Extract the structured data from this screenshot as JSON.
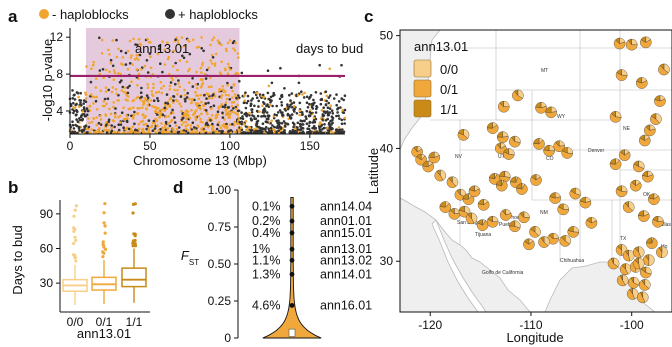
{
  "figure": {
    "panel_letters": [
      "a",
      "b",
      "c",
      "d"
    ],
    "colors": {
      "minus_haploblock": "#F2A52E",
      "plus_haploblock": "#333333",
      "threshold_line": "#9C1F6A",
      "haploblock_shade": "#E4CADC",
      "geno_00": "#F8CF8A",
      "geno_01": "#F0A83C",
      "geno_11": "#C98A18"
    }
  },
  "panel_a": {
    "legend": {
      "minus_label": "- haploblocks",
      "plus_label": "+ haploblocks"
    },
    "haploblock_label": "ann13.01",
    "trait_label": "days to bud",
    "chart_data": {
      "type": "scatter",
      "title": "",
      "xlabel": "Chromosome 13 (Mbp)",
      "ylabel": "-log10 p-value",
      "xlim": [
        0,
        172
      ],
      "ylim": [
        1.5,
        13
      ],
      "xticks": [
        0,
        50,
        100,
        150
      ],
      "yticks": [
        4,
        8,
        12
      ],
      "threshold": 7.8,
      "haploblock_region": [
        10,
        106
      ],
      "grid": false
    }
  },
  "panel_b": {
    "chart_data": {
      "type": "box",
      "title": "",
      "xlabel": "ann13.01",
      "ylabel": "Days to bud",
      "categories": [
        "0/0",
        "0/1",
        "1/1"
      ],
      "ylim": [
        5,
        102
      ],
      "yticks": [
        30,
        60,
        90
      ],
      "series": [
        {
          "q1": 23,
          "median": 28,
          "q3": 33,
          "whisker_low": 11,
          "whisker_high": 46
        },
        {
          "q1": 24,
          "median": 29,
          "q3": 35,
          "whisker_low": 12,
          "whisker_high": 50
        },
        {
          "q1": 27,
          "median": 33,
          "q3": 43,
          "whisker_low": 13,
          "whisker_high": 60
        }
      ]
    }
  },
  "panel_c": {
    "legend_title": "ann13.01",
    "legend_items": [
      "0/0",
      "0/1",
      "1/1"
    ],
    "chart_data": {
      "type": "map",
      "title": "",
      "xlabel": "Longitude",
      "ylabel": "Latitude",
      "xlim": [
        -123,
        -96
      ],
      "ylim": [
        25.5,
        50.5
      ],
      "xticks": [
        -120,
        -110,
        -100
      ],
      "yticks": [
        30,
        40,
        50
      ]
    },
    "map_labels": [
      "MT",
      "WY",
      "NE",
      "NV",
      "UT",
      "CO",
      "NM",
      "OK",
      "TX",
      "Denver",
      "Dallas",
      "Phoenix",
      "San Diego",
      "Tijuana",
      "Pueblo",
      "Chihuahua",
      "Monterrey",
      "Golfo de California",
      "Ho"
    ]
  },
  "panel_d": {
    "chart_data": {
      "type": "violin",
      "title": "",
      "xlabel": "",
      "ylabel": "F",
      "ylabel_sub": "ST",
      "ylim": [
        0,
        1
      ],
      "yticks": [
        0,
        0.25,
        0.5,
        0.75,
        1.0
      ],
      "ytick_labels": [
        "0",
        "0.25",
        "0.50",
        "0.75",
        "1.00"
      ],
      "outliers": [
        {
          "value": 0.89,
          "percent": "0.1%",
          "name": "ann14.04"
        },
        {
          "value": 0.79,
          "percent": "0.2%",
          "name": "ann01.01"
        },
        {
          "value": 0.71,
          "percent": "0.4%",
          "name": "ann15.01"
        },
        {
          "value": 0.6,
          "percent": "1%",
          "name": "ann13.01"
        },
        {
          "value": 0.525,
          "percent": "1.1%",
          "name": "ann13.02"
        },
        {
          "value": 0.43,
          "percent": "1.3%",
          "name": "ann14.01"
        },
        {
          "value": 0.22,
          "percent": "4.6%",
          "name": "ann16.01"
        }
      ]
    }
  }
}
